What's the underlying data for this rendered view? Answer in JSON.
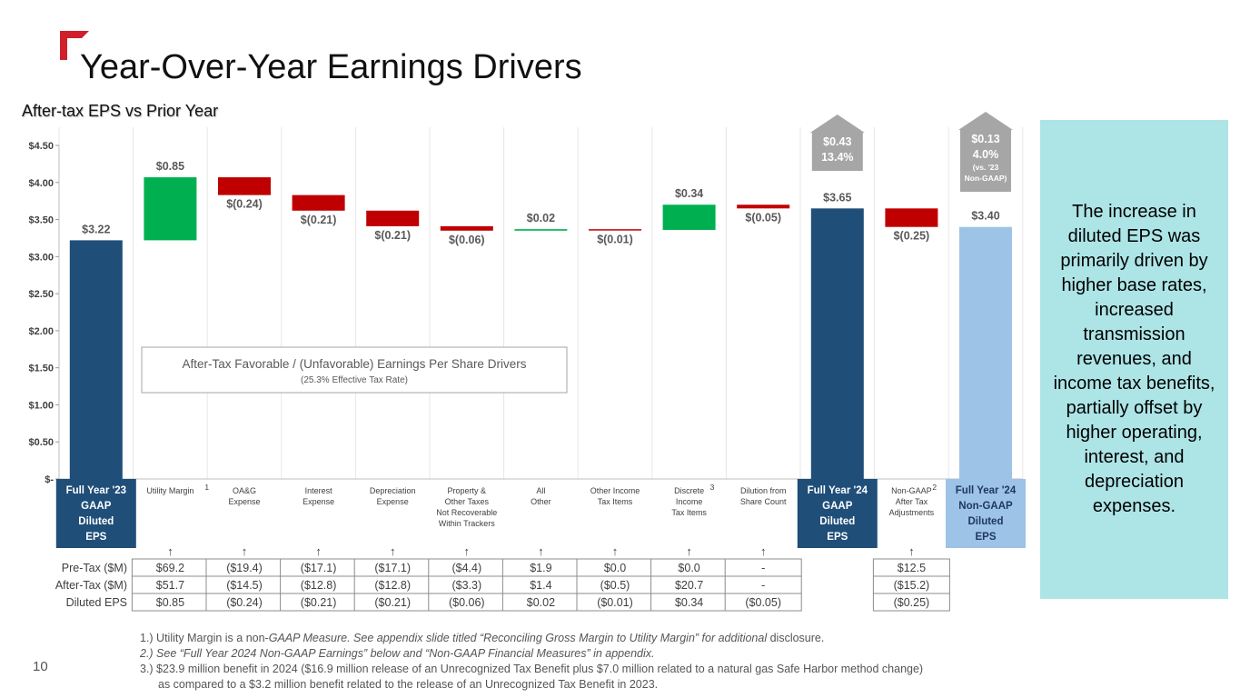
{
  "slide": {
    "title": "Year-Over-Year Earnings Drivers",
    "subtitle": "After-tax EPS vs Prior Year",
    "page_number": "10",
    "side_panel_text": "The increase in diluted EPS was primarily driven by higher base rates, increased transmission revenues, and income tax benefits, partially offset by higher operating, interest, and depreciation expenses.",
    "footnotes": {
      "fn1_a": "1.) Utility Margin is a non-",
      "fn1_b": "GAAP Measure. See appendix slide titled “Reconciling Gross Margin to Utility Margin” for additional",
      "fn1_c": " disclosure.",
      "fn2": "2.) See “Full Year 2024 Non-GAAP Earnings” below and “Non-GAAP Financial Measures” in appendix.",
      "fn3_a": "3.) $23.9 million benefit in 2024 ($16.9 million release of an Unrecognized Tax Benefit plus $7.0 million related to a natural gas Safe Harbor method change)",
      "fn3_b": "as compared to a $3.2 million benefit related to the release of an Unrecognized Tax Benefit in 2023."
    },
    "colors": {
      "accent_red": "#d0202a",
      "gaap_bar": "#1f4e79",
      "non_gaap_bar": "#9dc3e6",
      "increase": "#00b050",
      "decrease": "#c00000",
      "arrow_gray": "#a6a6a6",
      "side_panel": "#ade4e6"
    }
  },
  "chart_data": {
    "type": "bar",
    "subtype": "waterfall",
    "ylim": [
      0,
      4.5
    ],
    "y_ticks": [
      {
        "value": 4.5,
        "label": "$4.50"
      },
      {
        "value": 4.0,
        "label": "$4.00"
      },
      {
        "value": 3.5,
        "label": "$3.50"
      },
      {
        "value": 3.0,
        "label": "$3.00"
      },
      {
        "value": 2.5,
        "label": "$2.50"
      },
      {
        "value": 2.0,
        "label": "$2.00"
      },
      {
        "value": 1.5,
        "label": "$1.50"
      },
      {
        "value": 1.0,
        "label": "$1.00"
      },
      {
        "value": 0.5,
        "label": "$0.50"
      },
      {
        "value": 0,
        "label": "$-"
      }
    ],
    "annotation_box": {
      "line1": "After-Tax Favorable / (Unfavorable) Earnings Per Share Drivers",
      "line2": "(25.3% Effective Tax Rate)"
    },
    "bars": [
      {
        "category": [
          "Full Year '23",
          "GAAP",
          "Diluted",
          "EPS"
        ],
        "kind": "total_gaap",
        "start": 0,
        "end": 3.22,
        "label": "$3.22",
        "highlight": true
      },
      {
        "category": [
          "Utility Margin"
        ],
        "sup": "1",
        "kind": "increase",
        "start": 3.22,
        "end": 4.07,
        "label": "$0.85"
      },
      {
        "category": [
          "OA&G",
          "Expense"
        ],
        "kind": "decrease",
        "start": 4.07,
        "end": 3.83,
        "label": "$(0.24)"
      },
      {
        "category": [
          "Interest",
          "Expense"
        ],
        "kind": "decrease",
        "start": 3.83,
        "end": 3.62,
        "label": "$(0.21)"
      },
      {
        "category": [
          "Depreciation",
          "Expense"
        ],
        "kind": "decrease",
        "start": 3.62,
        "end": 3.41,
        "label": "$(0.21)"
      },
      {
        "category": [
          "Property &",
          "Other Taxes",
          "Not Recoverable",
          "Within Trackers"
        ],
        "kind": "decrease",
        "start": 3.41,
        "end": 3.35,
        "label": "$(0.06)"
      },
      {
        "category": [
          "All",
          "Other"
        ],
        "kind": "increase",
        "start": 3.35,
        "end": 3.37,
        "label": "$0.02"
      },
      {
        "category": [
          "Other Income",
          "Tax Items"
        ],
        "kind": "decrease",
        "start": 3.37,
        "end": 3.36,
        "label": "$(0.01)"
      },
      {
        "category": [
          "Discrete",
          "Income",
          "Tax Items"
        ],
        "sup": "3",
        "kind": "increase",
        "start": 3.36,
        "end": 3.7,
        "label": "$0.34"
      },
      {
        "category": [
          "Dilution from",
          "Share Count"
        ],
        "kind": "decrease",
        "start": 3.7,
        "end": 3.65,
        "label": "$(0.05)"
      },
      {
        "category": [
          "Full Year '24",
          "GAAP",
          "Diluted",
          "EPS"
        ],
        "kind": "total_gaap",
        "start": 0,
        "end": 3.65,
        "label": "$3.65",
        "highlight": true
      },
      {
        "category": [
          "Non-GAAP",
          "After Tax",
          "Adjustments"
        ],
        "sup": "2",
        "kind": "decrease",
        "start": 3.65,
        "end": 3.4,
        "label": "$(0.25)"
      },
      {
        "category": [
          "Full Year '24",
          "Non-GAAP",
          "Diluted",
          "EPS"
        ],
        "kind": "total_nongaap",
        "start": 0,
        "end": 3.4,
        "label": "$3.40",
        "highlight": true
      }
    ],
    "up_arrows": [
      {
        "bar_index": 10,
        "lines": [
          "$0.43",
          "13.4%"
        ]
      },
      {
        "bar_index": 12,
        "lines": [
          "$0.13",
          "4.0%",
          "(vs. '23",
          "Non-GAAP)"
        ]
      }
    ],
    "table": {
      "row_labels": [
        "Pre-Tax ($M)",
        "After-Tax ($M)",
        "Diluted EPS"
      ],
      "columns": [
        {
          "bar_index": 1,
          "values": [
            "$69.2",
            "$51.7",
            "$0.85"
          ]
        },
        {
          "bar_index": 2,
          "values": [
            "($19.4)",
            "($14.5)",
            "($0.24)"
          ]
        },
        {
          "bar_index": 3,
          "values": [
            "($17.1)",
            "($12.8)",
            "($0.21)"
          ]
        },
        {
          "bar_index": 4,
          "values": [
            "($17.1)",
            "($12.8)",
            "($0.21)"
          ]
        },
        {
          "bar_index": 5,
          "values": [
            "($4.4)",
            "($3.3)",
            "($0.06)"
          ]
        },
        {
          "bar_index": 6,
          "values": [
            "$1.9",
            "$1.4",
            "$0.02"
          ]
        },
        {
          "bar_index": 7,
          "values": [
            "$0.0",
            "($0.5)",
            "($0.01)"
          ]
        },
        {
          "bar_index": 8,
          "values": [
            "$0.0",
            "$20.7",
            "$0.34"
          ]
        },
        {
          "bar_index": 9,
          "values": [
            "-",
            "-",
            "($0.05)"
          ]
        },
        {
          "bar_index": 11,
          "values": [
            "$12.5",
            "($15.2)",
            "($0.25)"
          ]
        }
      ]
    }
  }
}
